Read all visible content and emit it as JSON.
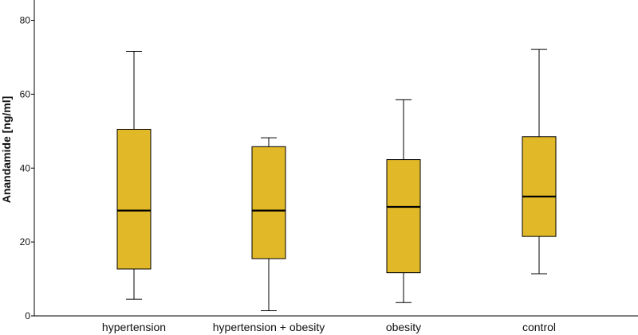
{
  "chart_data": {
    "type": "boxplot",
    "ylabel": "Anandamide [ng/ml]",
    "xlabel": "",
    "ylim": [
      0,
      85
    ],
    "yticks": [
      0,
      20,
      40,
      60,
      80
    ],
    "grid": false,
    "box_color": "#E1B928",
    "categories": [
      "hypertension",
      "hypertension + obesity",
      "obesity",
      "control"
    ],
    "boxes": [
      {
        "category": "hypertension",
        "min": 4.5,
        "q1": 12.7,
        "median": 28.5,
        "q3": 50.5,
        "max": 71.6
      },
      {
        "category": "hypertension + obesity",
        "min": 1.4,
        "q1": 15.5,
        "median": 28.5,
        "q3": 45.8,
        "max": 48.2
      },
      {
        "category": "obesity",
        "min": 3.6,
        "q1": 11.7,
        "median": 29.5,
        "q3": 42.3,
        "max": 58.5
      },
      {
        "category": "control",
        "min": 11.4,
        "q1": 21.5,
        "median": 32.3,
        "q3": 48.5,
        "max": 72.1
      }
    ]
  }
}
